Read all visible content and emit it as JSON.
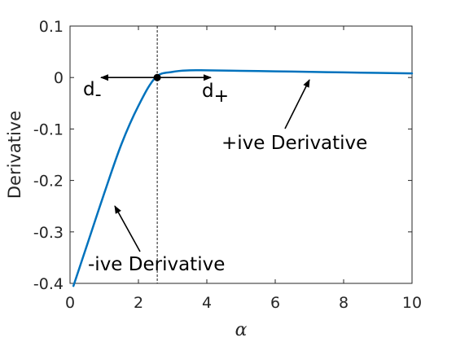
{
  "chart_data": {
    "type": "line",
    "title": "",
    "xlabel": "α",
    "ylabel": "Derivative",
    "xlim": [
      0,
      10
    ],
    "ylim": [
      -0.4,
      0.1
    ],
    "x_ticks": [
      0,
      2,
      4,
      6,
      8,
      10
    ],
    "x_tick_labels": [
      "0",
      "2",
      "4",
      "6",
      "8",
      "10"
    ],
    "y_ticks": [
      0.1,
      0,
      -0.1,
      -0.2,
      -0.3,
      -0.4
    ],
    "y_tick_labels": [
      "0.1",
      "0",
      "-0.1",
      "-0.2",
      "-0.3",
      "-0.4"
    ],
    "grid": false,
    "series": [
      {
        "color": "#0072BD",
        "x": [
          0.1,
          0.5,
          1.0,
          1.5,
          2.0,
          2.5,
          3.0,
          3.5,
          4.0,
          5.0,
          6.0,
          7.0,
          8.0,
          9.0,
          10.0
        ],
        "y": [
          -0.405,
          -0.325,
          -0.225,
          -0.13,
          -0.055,
          0.0,
          0.011,
          0.014,
          0.014,
          0.013,
          0.012,
          0.011,
          0.01,
          0.009,
          0.008
        ]
      }
    ],
    "vline_x": 2.55,
    "marker": {
      "x": 2.55,
      "y": 0.0
    },
    "annotations": {
      "d_minus": {
        "main": "d",
        "sub": "-"
      },
      "d_plus": {
        "main": "d",
        "sub": "+"
      },
      "positive": "+ive Derivative",
      "negative": "-ive Derivative"
    }
  }
}
